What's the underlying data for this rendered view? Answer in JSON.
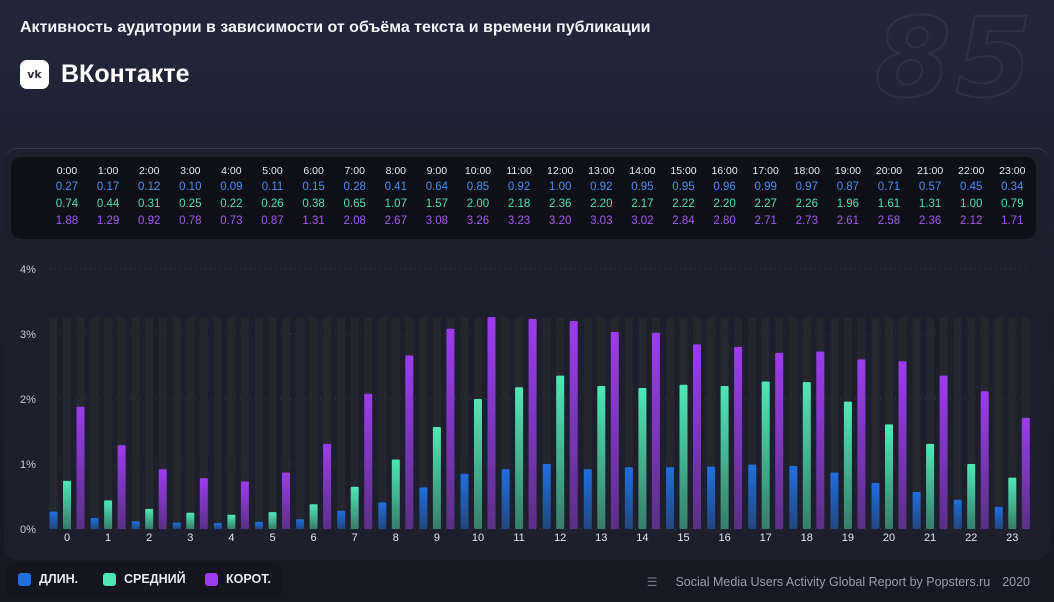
{
  "header": {
    "title": "Активность аудитории в зависимости от объёма текста и времени публикации",
    "brand": "ВКонтакте",
    "logo_text": "vk",
    "watermark": "85"
  },
  "colors": {
    "long": "#1f6fe0",
    "medium": "#4fe8b5",
    "short": "#9d3cf0"
  },
  "chart_data": {
    "type": "bar",
    "categories": [
      "0",
      "1",
      "2",
      "3",
      "4",
      "5",
      "6",
      "7",
      "8",
      "9",
      "10",
      "11",
      "12",
      "13",
      "14",
      "15",
      "16",
      "17",
      "18",
      "19",
      "20",
      "21",
      "22",
      "23"
    ],
    "time_labels": [
      "0:00",
      "1:00",
      "2:00",
      "3:00",
      "4:00",
      "5:00",
      "6:00",
      "7:00",
      "8:00",
      "9:00",
      "10:00",
      "11:00",
      "12:00",
      "13:00",
      "14:00",
      "15:00",
      "16:00",
      "17:00",
      "18:00",
      "19:00",
      "20:00",
      "21:00",
      "22:00",
      "23:00"
    ],
    "series": [
      {
        "name": "ДЛИН.",
        "values": [
          0.27,
          0.17,
          0.12,
          0.1,
          0.09,
          0.11,
          0.15,
          0.28,
          0.41,
          0.64,
          0.85,
          0.92,
          1.0,
          0.92,
          0.95,
          0.95,
          0.96,
          0.99,
          0.97,
          0.87,
          0.71,
          0.57,
          0.45,
          0.34
        ]
      },
      {
        "name": "СРЕДНИЙ",
        "values": [
          0.74,
          0.44,
          0.31,
          0.25,
          0.22,
          0.26,
          0.38,
          0.65,
          1.07,
          1.57,
          2.0,
          2.18,
          2.36,
          2.2,
          2.17,
          2.22,
          2.2,
          2.27,
          2.26,
          1.96,
          1.61,
          1.31,
          1.0,
          0.79
        ]
      },
      {
        "name": "КОРОТ.",
        "values": [
          1.88,
          1.29,
          0.92,
          0.78,
          0.73,
          0.87,
          1.31,
          2.08,
          2.67,
          3.08,
          3.26,
          3.23,
          3.2,
          3.03,
          3.02,
          2.84,
          2.8,
          2.71,
          2.73,
          2.61,
          2.58,
          2.36,
          2.12,
          1.71
        ]
      }
    ],
    "y_ticks": [
      "0%",
      "1%",
      "2%",
      "3%",
      "4%"
    ],
    "ylim": [
      0,
      4
    ],
    "grid": true
  },
  "legend": {
    "long": "ДЛИН.",
    "medium": "СРЕДНИЙ",
    "short": "КОРОТ."
  },
  "footer": {
    "source": "Social Media Users Activity Global Report by Popsters.ru",
    "year": "2020"
  }
}
